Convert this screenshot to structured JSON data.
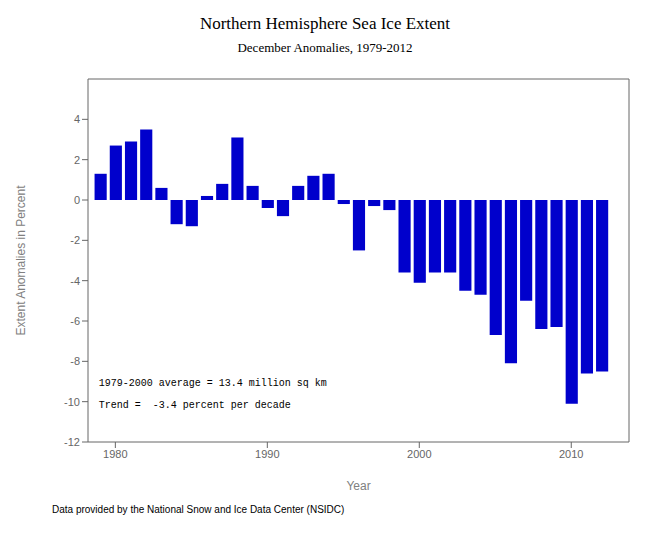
{
  "chart_data": {
    "type": "bar",
    "title": "Northern Hemisphere Sea Ice Extent",
    "subtitle": "December Anomalies, 1979-2012",
    "x_label": "Year",
    "y_label": "Extent Anomalies in Percent",
    "annotations": [
      "1979-2000 average = 13.4 million sq km",
      "Trend =  -3.4 percent per decade",
      "Data provided by the National Snow and Ice Data Center (NSIDC)"
    ],
    "x": [
      1979,
      1980,
      1981,
      1982,
      1983,
      1984,
      1985,
      1986,
      1987,
      1988,
      1989,
      1990,
      1991,
      1992,
      1993,
      1994,
      1995,
      1996,
      1997,
      1998,
      1999,
      2000,
      2001,
      2002,
      2003,
      2004,
      2005,
      2006,
      2007,
      2008,
      2009,
      2010,
      2011,
      2012
    ],
    "values": [
      1.3,
      2.7,
      2.9,
      3.5,
      0.6,
      -1.2,
      -1.3,
      0.2,
      0.8,
      3.1,
      0.7,
      -0.4,
      -0.8,
      0.7,
      1.2,
      1.3,
      -0.2,
      -2.5,
      -0.3,
      -0.5,
      -3.6,
      -4.1,
      -3.6,
      -3.6,
      -4.5,
      -4.7,
      -6.7,
      -8.1,
      -5.0,
      -6.4,
      -6.3,
      -10.1,
      -8.6,
      -8.5
    ],
    "color": "#0000CC",
    "xlim": [
      1978.2,
      2013.8
    ],
    "xticks": [
      1980,
      1990,
      2000,
      2010
    ],
    "ylim": [
      -12,
      6
    ],
    "yticks": [
      -12,
      -10,
      -8,
      -6,
      -4,
      -2,
      0,
      2,
      4
    ],
    "grid": false
  }
}
